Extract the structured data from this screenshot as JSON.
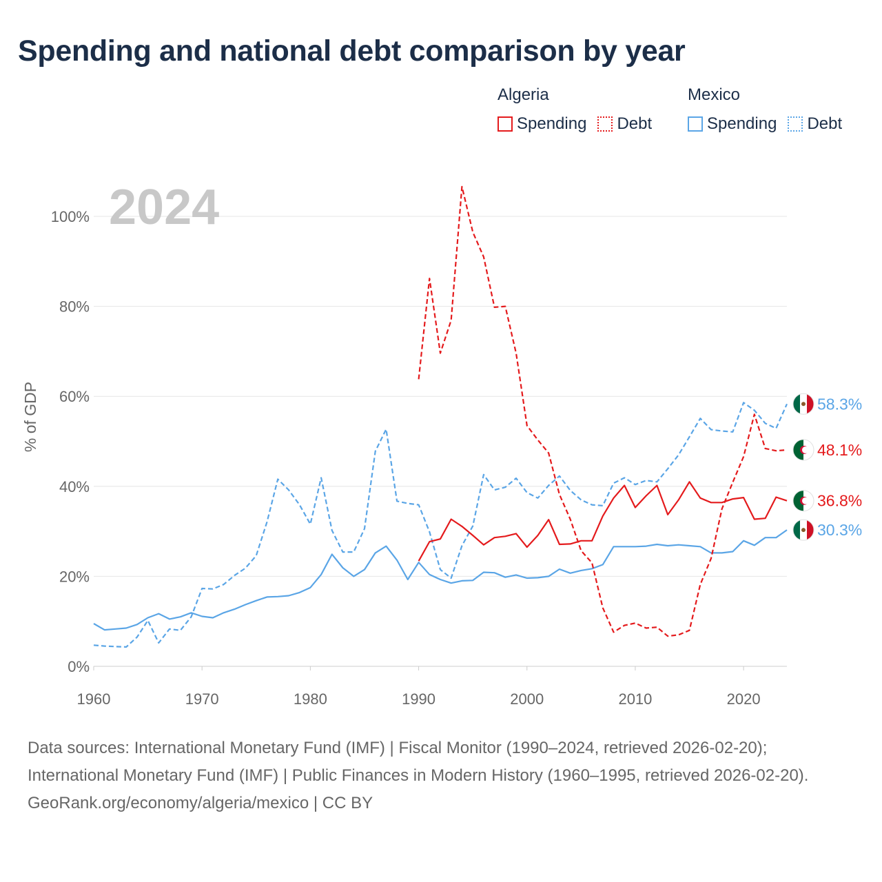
{
  "chart_data": {
    "type": "line",
    "title": "Spending and national debt comparison by year",
    "year_label": "2024",
    "ylabel": "% of GDP",
    "xlabel": "",
    "xlim": [
      1960,
      2024
    ],
    "ylim": [
      0,
      108
    ],
    "x_ticks": [
      1960,
      1970,
      1980,
      1990,
      2000,
      2010,
      2020
    ],
    "y_ticks": [
      {
        "value": 0,
        "label": "0%"
      },
      {
        "value": 20,
        "label": "20%"
      },
      {
        "value": 40,
        "label": "40%"
      },
      {
        "value": 60,
        "label": "60%"
      },
      {
        "value": 80,
        "label": "80%"
      },
      {
        "value": 100,
        "label": "100%"
      }
    ],
    "legend": [
      {
        "country": "Algeria",
        "color": "#e41a1c",
        "items": [
          {
            "label": "Spending",
            "style": "solid"
          },
          {
            "label": "Debt",
            "style": "dotted"
          }
        ]
      },
      {
        "country": "Mexico",
        "color": "#5aa5e6",
        "items": [
          {
            "label": "Spending",
            "style": "solid"
          },
          {
            "label": "Debt",
            "style": "dotted"
          }
        ]
      }
    ],
    "series": [
      {
        "name": "Mexico Debt",
        "country": "Mexico",
        "color": "#5aa5e6",
        "dash": true,
        "start_year": 1960,
        "end_label": "58.3%",
        "values": [
          4.7,
          4.5,
          4.4,
          4.3,
          6.5,
          10.2,
          5.2,
          8.3,
          8.0,
          11.0,
          17.3,
          17.2,
          18.2,
          20.2,
          21.8,
          24.6,
          32.1,
          41.6,
          39.2,
          35.9,
          31.6,
          41.9,
          30.2,
          25.4,
          25.4,
          30.6,
          47.8,
          52.7,
          36.7,
          36.2,
          35.9,
          29.9,
          21.5,
          19.6,
          26.8,
          31.2,
          42.6,
          39.2,
          39.8,
          41.8,
          38.6,
          37.4,
          40.2,
          42.3,
          39.1,
          37.0,
          35.9,
          35.7,
          40.7,
          41.9,
          40.4,
          41.3,
          41.0,
          43.9,
          47.0,
          51.0,
          55.1,
          52.6,
          52.3,
          52.1,
          58.6,
          56.9,
          54.0,
          52.9,
          58.3
        ]
      },
      {
        "name": "Mexico Spending",
        "country": "Mexico",
        "color": "#5aa5e6",
        "dash": false,
        "start_year": 1960,
        "end_label": "30.3%",
        "values": [
          9.5,
          8.1,
          8.3,
          8.5,
          9.3,
          10.8,
          11.7,
          10.5,
          11.0,
          11.9,
          11.1,
          10.8,
          11.9,
          12.7,
          13.7,
          14.6,
          15.4,
          15.5,
          15.7,
          16.4,
          17.5,
          20.4,
          24.9,
          21.9,
          20.0,
          21.5,
          25.2,
          26.7,
          23.6,
          19.3,
          23.1,
          20.4,
          19.3,
          18.5,
          19.0,
          19.1,
          20.9,
          20.8,
          19.8,
          20.3,
          19.6,
          19.7,
          20.0,
          21.6,
          20.7,
          21.3,
          21.7,
          22.6,
          26.6,
          26.6,
          26.6,
          26.7,
          27.1,
          26.8,
          27.0,
          26.8,
          26.6,
          25.2,
          25.2,
          25.5,
          27.9,
          26.9,
          28.6,
          28.6,
          30.3
        ]
      },
      {
        "name": "Algeria Debt",
        "country": "Algeria",
        "color": "#e41a1c",
        "dash": true,
        "start_year": 1990,
        "end_label": "48.1%",
        "values": [
          63.8,
          86.2,
          69.6,
          76.9,
          106.6,
          96.5,
          91.0,
          79.8,
          80.0,
          69.6,
          53.5,
          50.3,
          47.4,
          38.2,
          32.7,
          25.7,
          23.0,
          13.0,
          7.6,
          9.1,
          9.6,
          8.5,
          8.7,
          6.7,
          7.0,
          8.0,
          18.2,
          24.0,
          35.0,
          40.9,
          46.6,
          56.0,
          48.4,
          47.9,
          48.1
        ]
      },
      {
        "name": "Algeria Spending",
        "country": "Algeria",
        "color": "#e41a1c",
        "dash": false,
        "start_year": 1990,
        "end_label": "36.8%",
        "values": [
          23.4,
          27.7,
          28.3,
          32.7,
          31.1,
          29.1,
          27.0,
          28.6,
          28.9,
          29.5,
          26.5,
          29.1,
          32.6,
          27.1,
          27.2,
          27.9,
          27.9,
          33.4,
          37.4,
          40.2,
          35.3,
          37.9,
          40.2,
          33.7,
          37.0,
          41.0,
          37.4,
          36.4,
          36.4,
          37.2,
          37.5,
          32.7,
          32.9,
          37.6,
          36.8
        ]
      }
    ]
  },
  "footer": {
    "line1": "Data sources: International Monetary Fund (IMF) | Fiscal Monitor (1990–2024, retrieved 2026-02-20); International Monetary Fund (IMF) | Public Finances in Modern History (1960–1995, retrieved 2026-02-20).",
    "line2": "GeoRank.org/economy/algeria/mexico | CC BY"
  }
}
